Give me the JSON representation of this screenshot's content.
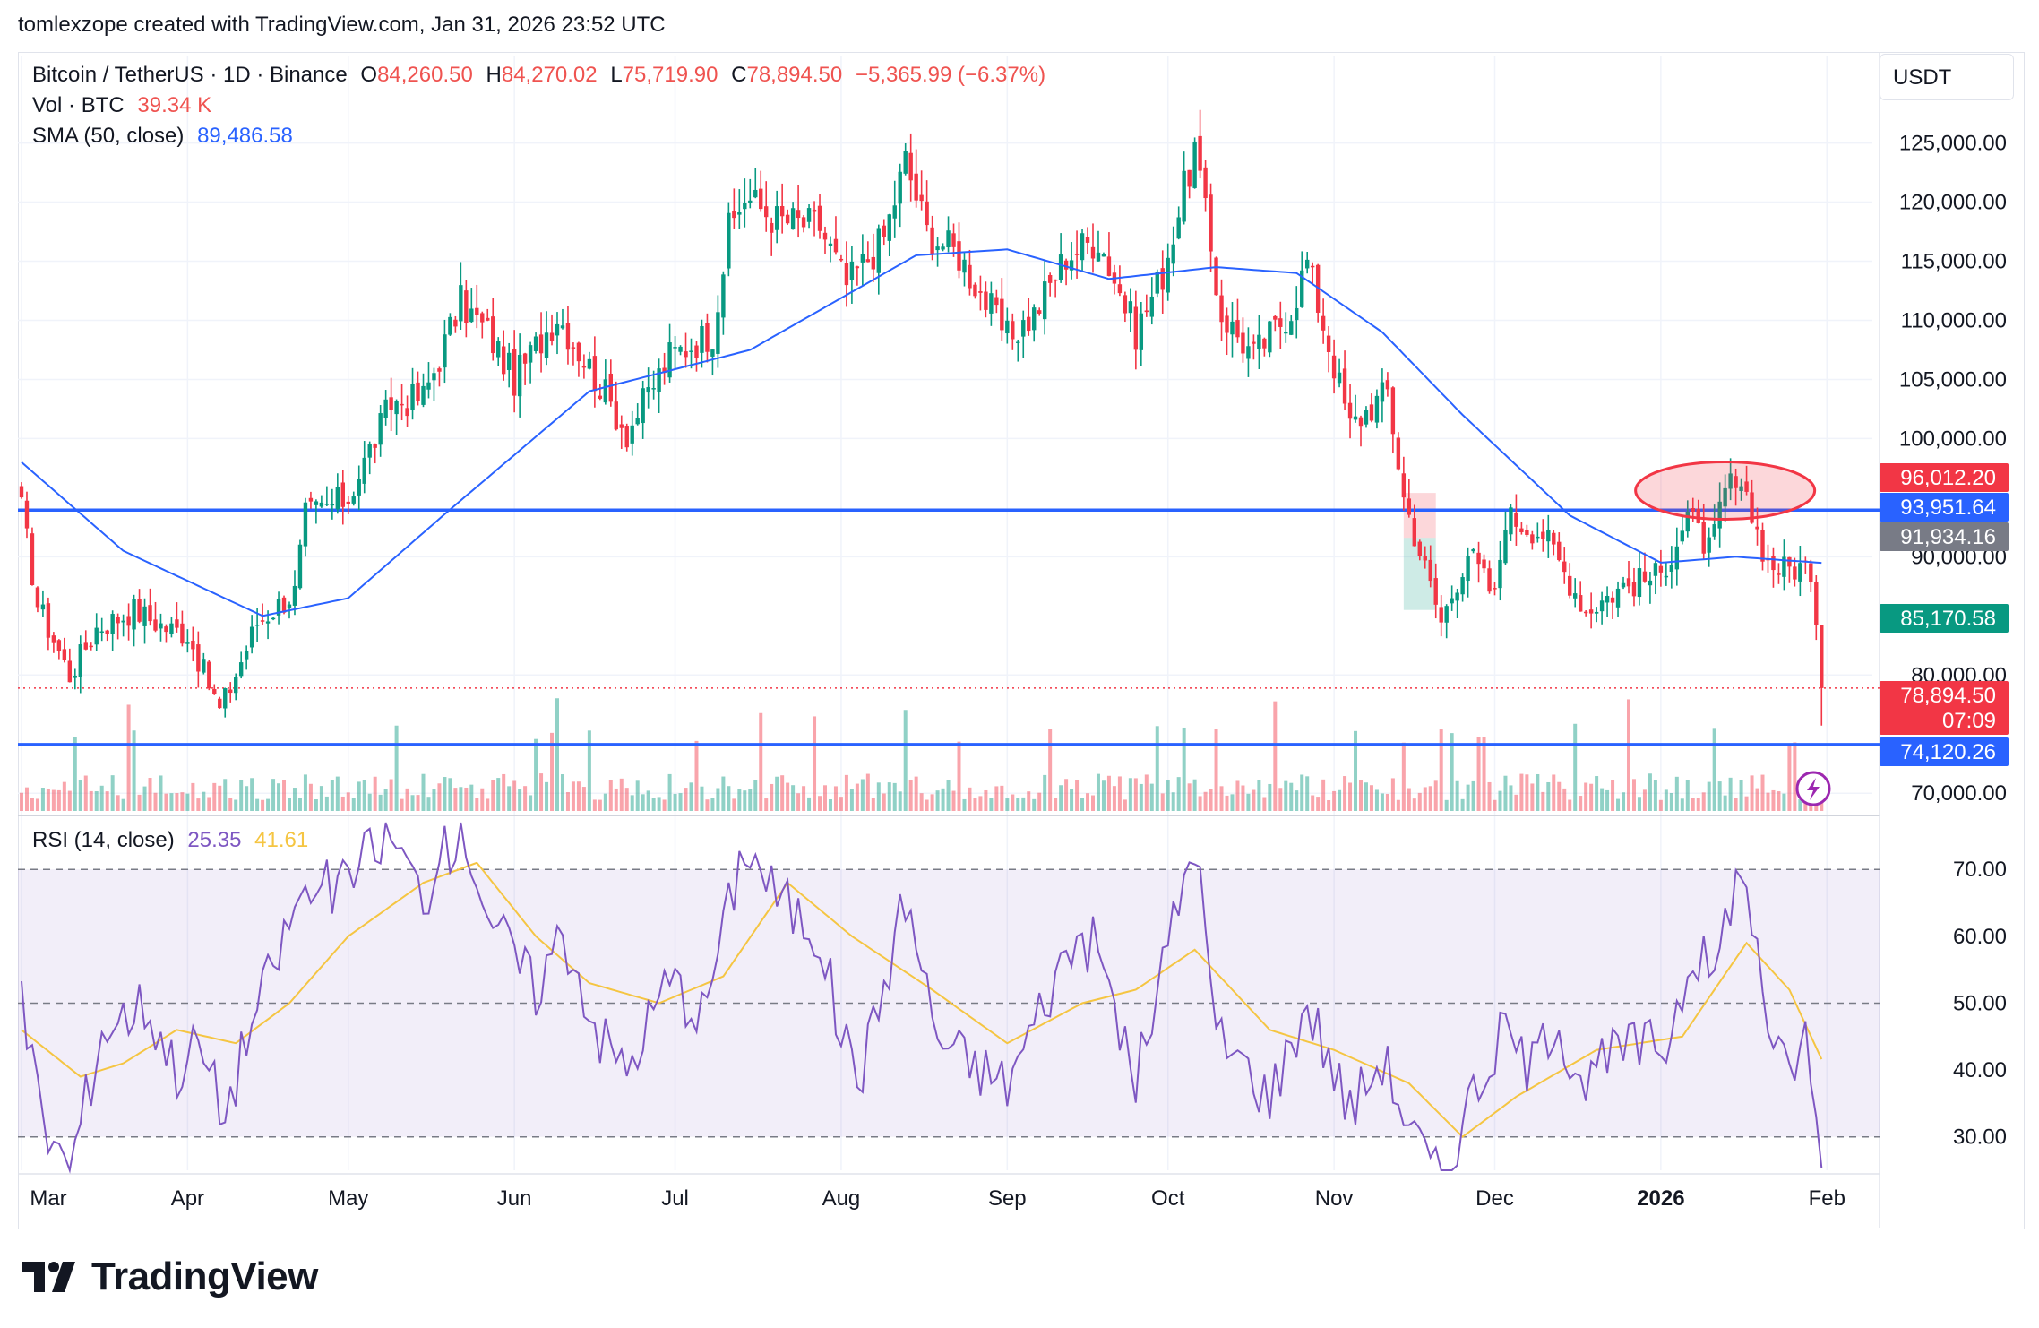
{
  "credit": "tomlexzope created with TradingView.com, Jan 31, 2026 23:52 UTC",
  "header": {
    "symbol": "Bitcoin / TetherUS · 1D · Binance",
    "o_label": "O",
    "o_value": "84,260.50",
    "h_label": "H",
    "h_value": "84,270.02",
    "l_label": "L",
    "l_value": "75,719.90",
    "c_label": "C",
    "c_value": "78,894.50",
    "change": "−5,365.99 (−6.37%)",
    "vol_label": "Vol · BTC",
    "vol_value": "39.34 K",
    "sma_label": "SMA (50, close)",
    "sma_value": "89,486.58"
  },
  "rsi_header": {
    "label": "RSI (14, close)",
    "rsi_value": "25.35",
    "ma_value": "41.61"
  },
  "price_axis": {
    "unit": "USDT",
    "ticks": [
      "125,000.00",
      "120,000.00",
      "115,000.00",
      "110,000.00",
      "105,000.00",
      "100,000.00",
      "90,000.00",
      "80,000.00",
      "70,000.00"
    ],
    "tick_values": [
      125000,
      120000,
      115000,
      110000,
      105000,
      100000,
      90000,
      80000,
      70000
    ]
  },
  "price_tags": [
    {
      "text": "96,012.20",
      "value": 96012.2,
      "color": "#f23645"
    },
    {
      "text": "93,951.64",
      "value": 93951.64,
      "color": "#2962ff"
    },
    {
      "text": "91,934.16",
      "value": 91934.16,
      "color": "#787b86"
    },
    {
      "text": "85,170.58",
      "value": 85170.58,
      "color": "#089981"
    },
    {
      "text": "78,894.50",
      "value": 78894.5,
      "color": "#f23645"
    },
    {
      "text": "07:09",
      "value": 76980,
      "color": "#f23645"
    },
    {
      "text": "74,120.26",
      "value": 74120.26,
      "color": "#2962ff"
    }
  ],
  "rsi_axis": {
    "ticks": [
      "70.00",
      "60.00",
      "50.00",
      "40.00",
      "30.00"
    ],
    "tick_values": [
      70,
      60,
      50,
      40,
      30
    ]
  },
  "time_axis": [
    {
      "label": "Mar",
      "day": 0
    },
    {
      "label": "Apr",
      "day": 31
    },
    {
      "label": "May",
      "day": 61
    },
    {
      "label": "Jun",
      "day": 92
    },
    {
      "label": "Jul",
      "day": 122
    },
    {
      "label": "Aug",
      "day": 153
    },
    {
      "label": "Sep",
      "day": 184
    },
    {
      "label": "Oct",
      "day": 214
    },
    {
      "label": "Nov",
      "day": 245
    },
    {
      "label": "Dec",
      "day": 275
    },
    {
      "label": "2026",
      "day": 306,
      "bold": true
    },
    {
      "label": "Feb",
      "day": 337
    }
  ],
  "chart_data": {
    "type": "candlestick",
    "symbol": "BTC/USDT",
    "x_start": "2025-03-01",
    "x_end": "2026-01-31",
    "ylim": [
      68500,
      128000
    ],
    "horizontal_levels": [
      {
        "value": 93951.64,
        "color": "#2962ff"
      },
      {
        "value": 74120.26,
        "color": "#2962ff"
      },
      {
        "value": 78894.5,
        "color": "#f23645",
        "style": "dotted"
      }
    ],
    "anchors": [
      {
        "date": "2025-03-01",
        "close": 94000
      },
      {
        "date": "2025-03-04",
        "close": 86000
      },
      {
        "date": "2025-03-10",
        "close": 80000
      },
      {
        "date": "2025-03-15",
        "close": 84000
      },
      {
        "date": "2025-03-22",
        "close": 85500
      },
      {
        "date": "2025-03-28",
        "close": 84000
      },
      {
        "date": "2025-04-01",
        "close": 83500
      },
      {
        "date": "2025-04-07",
        "close": 77000
      },
      {
        "date": "2025-04-09",
        "close": 79000
      },
      {
        "date": "2025-04-14",
        "close": 84500
      },
      {
        "date": "2025-04-21",
        "close": 87000
      },
      {
        "date": "2025-04-23",
        "close": 93500
      },
      {
        "date": "2025-05-01",
        "close": 95000
      },
      {
        "date": "2025-05-09",
        "close": 103000
      },
      {
        "date": "2025-05-15",
        "close": 103500
      },
      {
        "date": "2025-05-22",
        "close": 111500
      },
      {
        "date": "2025-05-27",
        "close": 109000
      },
      {
        "date": "2025-06-01",
        "close": 105000
      },
      {
        "date": "2025-06-09",
        "close": 110500
      },
      {
        "date": "2025-06-17",
        "close": 104500
      },
      {
        "date": "2025-06-22",
        "close": 100500
      },
      {
        "date": "2025-06-30",
        "close": 107000
      },
      {
        "date": "2025-07-08",
        "close": 109000
      },
      {
        "date": "2025-07-11",
        "close": 117500
      },
      {
        "date": "2025-07-14",
        "close": 120500
      },
      {
        "date": "2025-07-20",
        "close": 118500
      },
      {
        "date": "2025-07-28",
        "close": 118000
      },
      {
        "date": "2025-08-02",
        "close": 113000
      },
      {
        "date": "2025-08-09",
        "close": 117000
      },
      {
        "date": "2025-08-13",
        "close": 123500
      },
      {
        "date": "2025-08-17",
        "close": 117500
      },
      {
        "date": "2025-08-23",
        "close": 115500
      },
      {
        "date": "2025-09-01",
        "close": 108500
      },
      {
        "date": "2025-09-06",
        "close": 110500
      },
      {
        "date": "2025-09-12",
        "close": 115500
      },
      {
        "date": "2025-09-18",
        "close": 117000
      },
      {
        "date": "2025-09-25",
        "close": 109000
      },
      {
        "date": "2025-09-30",
        "close": 114000
      },
      {
        "date": "2025-10-06",
        "close": 124500
      },
      {
        "date": "2025-10-10",
        "close": 113000
      },
      {
        "date": "2025-10-11",
        "close": 110500
      },
      {
        "date": "2025-10-17",
        "close": 107000
      },
      {
        "date": "2025-10-24",
        "close": 111000
      },
      {
        "date": "2025-10-27",
        "close": 115000
      },
      {
        "date": "2025-11-04",
        "close": 101000
      },
      {
        "date": "2025-11-11",
        "close": 104000
      },
      {
        "date": "2025-11-14",
        "close": 95000
      },
      {
        "date": "2025-11-21",
        "close": 84500
      },
      {
        "date": "2025-11-26",
        "close": 90500
      },
      {
        "date": "2025-12-01",
        "close": 86500
      },
      {
        "date": "2025-12-03",
        "close": 93500
      },
      {
        "date": "2025-12-10",
        "close": 92000
      },
      {
        "date": "2025-12-18",
        "close": 85500
      },
      {
        "date": "2025-12-25",
        "close": 87500
      },
      {
        "date": "2026-01-01",
        "close": 88500
      },
      {
        "date": "2026-01-06",
        "close": 93500
      },
      {
        "date": "2026-01-10",
        "close": 90500
      },
      {
        "date": "2026-01-14",
        "close": 96500
      },
      {
        "date": "2026-01-18",
        "close": 93500
      },
      {
        "date": "2026-01-21",
        "close": 89500
      },
      {
        "date": "2026-01-24",
        "close": 89000
      },
      {
        "date": "2026-01-28",
        "close": 89200
      },
      {
        "date": "2026-01-30",
        "close": 84260.5
      },
      {
        "date": "2026-01-31",
        "close": 78894.5
      }
    ],
    "sma_anchors": [
      {
        "date": "2025-03-01",
        "value": 98000
      },
      {
        "date": "2025-03-20",
        "value": 90500
      },
      {
        "date": "2025-04-15",
        "value": 85000
      },
      {
        "date": "2025-05-01",
        "value": 86500
      },
      {
        "date": "2025-05-20",
        "value": 94000
      },
      {
        "date": "2025-06-15",
        "value": 104000
      },
      {
        "date": "2025-07-15",
        "value": 107500
      },
      {
        "date": "2025-08-15",
        "value": 115500
      },
      {
        "date": "2025-09-01",
        "value": 116000
      },
      {
        "date": "2025-09-20",
        "value": 113500
      },
      {
        "date": "2025-10-10",
        "value": 114500
      },
      {
        "date": "2025-10-25",
        "value": 114000
      },
      {
        "date": "2025-11-10",
        "value": 109000
      },
      {
        "date": "2025-11-25",
        "value": 102000
      },
      {
        "date": "2025-12-15",
        "value": 93500
      },
      {
        "date": "2026-01-01",
        "value": 89500
      },
      {
        "date": "2026-01-15",
        "value": 90000
      },
      {
        "date": "2026-01-31",
        "value": 89486.58
      }
    ],
    "rsi": {
      "ylim": [
        25,
        77
      ],
      "bands": [
        70,
        50,
        30
      ],
      "last_rsi": 25.35,
      "last_ma": 41.61,
      "anchors": [
        {
          "date": "2025-03-01",
          "value": 50
        },
        {
          "date": "2025-03-05",
          "value": 32
        },
        {
          "date": "2025-03-10",
          "value": 25
        },
        {
          "date": "2025-03-16",
          "value": 46
        },
        {
          "date": "2025-03-24",
          "value": 50
        },
        {
          "date": "2025-03-30",
          "value": 40
        },
        {
          "date": "2025-04-03",
          "value": 44
        },
        {
          "date": "2025-04-08",
          "value": 33
        },
        {
          "date": "2025-04-12",
          "value": 45
        },
        {
          "date": "2025-04-22",
          "value": 66
        },
        {
          "date": "2025-05-01",
          "value": 68
        },
        {
          "date": "2025-05-08",
          "value": 76
        },
        {
          "date": "2025-05-15",
          "value": 66
        },
        {
          "date": "2025-05-22",
          "value": 77
        },
        {
          "date": "2025-05-28",
          "value": 62
        },
        {
          "date": "2025-06-05",
          "value": 52
        },
        {
          "date": "2025-06-10",
          "value": 61
        },
        {
          "date": "2025-06-17",
          "value": 45
        },
        {
          "date": "2025-06-22",
          "value": 40
        },
        {
          "date": "2025-06-30",
          "value": 54
        },
        {
          "date": "2025-07-06",
          "value": 48
        },
        {
          "date": "2025-07-14",
          "value": 74
        },
        {
          "date": "2025-07-20",
          "value": 66
        },
        {
          "date": "2025-07-28",
          "value": 60
        },
        {
          "date": "2025-08-01",
          "value": 45
        },
        {
          "date": "2025-08-05",
          "value": 40
        },
        {
          "date": "2025-08-13",
          "value": 66
        },
        {
          "date": "2025-08-19",
          "value": 45
        },
        {
          "date": "2025-08-25",
          "value": 41
        },
        {
          "date": "2025-09-01",
          "value": 38
        },
        {
          "date": "2025-09-10",
          "value": 54
        },
        {
          "date": "2025-09-14",
          "value": 60
        },
        {
          "date": "2025-09-18",
          "value": 58
        },
        {
          "date": "2025-09-25",
          "value": 38
        },
        {
          "date": "2025-10-02",
          "value": 62
        },
        {
          "date": "2025-10-06",
          "value": 75
        },
        {
          "date": "2025-10-10",
          "value": 45
        },
        {
          "date": "2025-10-14",
          "value": 42
        },
        {
          "date": "2025-10-20",
          "value": 36
        },
        {
          "date": "2025-10-27",
          "value": 50
        },
        {
          "date": "2025-11-04",
          "value": 34
        },
        {
          "date": "2025-11-10",
          "value": 42
        },
        {
          "date": "2025-11-16",
          "value": 30
        },
        {
          "date": "2025-11-21",
          "value": 23
        },
        {
          "date": "2025-11-26",
          "value": 35
        },
        {
          "date": "2025-12-03",
          "value": 46
        },
        {
          "date": "2025-12-08",
          "value": 40
        },
        {
          "date": "2025-12-12",
          "value": 48
        },
        {
          "date": "2025-12-18",
          "value": 38
        },
        {
          "date": "2025-12-24",
          "value": 43
        },
        {
          "date": "2026-01-02",
          "value": 44
        },
        {
          "date": "2026-01-07",
          "value": 58
        },
        {
          "date": "2026-01-11",
          "value": 54
        },
        {
          "date": "2026-01-15",
          "value": 70
        },
        {
          "date": "2026-01-19",
          "value": 60
        },
        {
          "date": "2026-01-22",
          "value": 42
        },
        {
          "date": "2026-01-25",
          "value": 40
        },
        {
          "date": "2026-01-28",
          "value": 45
        },
        {
          "date": "2026-01-30",
          "value": 33
        },
        {
          "date": "2026-01-31",
          "value": 25.35
        }
      ],
      "ma_anchors": [
        {
          "date": "2025-03-01",
          "value": 46
        },
        {
          "date": "2025-03-12",
          "value": 39
        },
        {
          "date": "2025-03-20",
          "value": 41
        },
        {
          "date": "2025-03-30",
          "value": 46
        },
        {
          "date": "2025-04-10",
          "value": 44
        },
        {
          "date": "2025-04-20",
          "value": 50
        },
        {
          "date": "2025-05-01",
          "value": 60
        },
        {
          "date": "2025-05-15",
          "value": 68
        },
        {
          "date": "2025-05-25",
          "value": 71
        },
        {
          "date": "2025-06-05",
          "value": 60
        },
        {
          "date": "2025-06-15",
          "value": 53
        },
        {
          "date": "2025-06-28",
          "value": 50
        },
        {
          "date": "2025-07-10",
          "value": 54
        },
        {
          "date": "2025-07-22",
          "value": 68
        },
        {
          "date": "2025-08-03",
          "value": 60
        },
        {
          "date": "2025-08-18",
          "value": 52
        },
        {
          "date": "2025-09-01",
          "value": 44
        },
        {
          "date": "2025-09-15",
          "value": 50
        },
        {
          "date": "2025-09-25",
          "value": 52
        },
        {
          "date": "2025-10-06",
          "value": 58
        },
        {
          "date": "2025-10-20",
          "value": 46
        },
        {
          "date": "2025-11-01",
          "value": 43
        },
        {
          "date": "2025-11-15",
          "value": 38
        },
        {
          "date": "2025-11-25",
          "value": 30
        },
        {
          "date": "2025-12-05",
          "value": 36
        },
        {
          "date": "2025-12-20",
          "value": 43
        },
        {
          "date": "2026-01-05",
          "value": 45
        },
        {
          "date": "2026-01-17",
          "value": 59
        },
        {
          "date": "2026-01-25",
          "value": 52
        },
        {
          "date": "2026-01-31",
          "value": 41.61
        }
      ]
    },
    "annotations": [
      {
        "type": "ellipse",
        "center": {
          "date": "2026-01-13",
          "price": 95600
        },
        "color": "#f23645"
      },
      {
        "type": "long-position",
        "from": "2025-11-14",
        "to": "2025-11-20",
        "entry": 91600,
        "target": 95400,
        "stop": 85500
      }
    ]
  }
}
